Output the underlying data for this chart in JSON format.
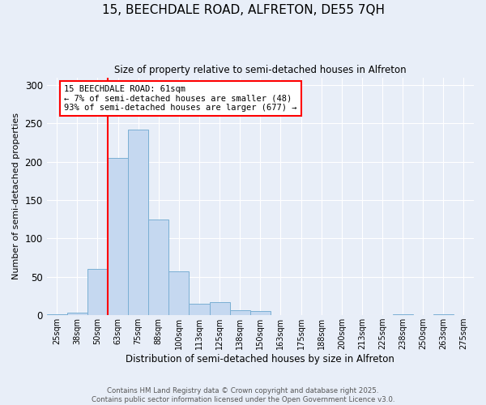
{
  "title": "15, BEECHDALE ROAD, ALFRETON, DE55 7QH",
  "subtitle": "Size of property relative to semi-detached houses in Alfreton",
  "xlabel": "Distribution of semi-detached houses by size in Alfreton",
  "ylabel": "Number of semi-detached properties",
  "bin_labels": [
    "25sqm",
    "38sqm",
    "50sqm",
    "63sqm",
    "75sqm",
    "88sqm",
    "100sqm",
    "113sqm",
    "125sqm",
    "138sqm",
    "150sqm",
    "163sqm",
    "175sqm",
    "188sqm",
    "200sqm",
    "213sqm",
    "225sqm",
    "238sqm",
    "250sqm",
    "263sqm",
    "275sqm"
  ],
  "bin_values": [
    1,
    3,
    60,
    205,
    242,
    125,
    57,
    15,
    17,
    7,
    5,
    0,
    0,
    0,
    0,
    0,
    0,
    1,
    0,
    1,
    0
  ],
  "bar_color": "#c5d8f0",
  "bar_edge_color": "#7aafd4",
  "red_line_x": 2.5,
  "annotation_text": "15 BEECHDALE ROAD: 61sqm\n← 7% of semi-detached houses are smaller (48)\n93% of semi-detached houses are larger (677) →",
  "annotation_box_color": "white",
  "annotation_box_edge": "red",
  "ylim": [
    0,
    310
  ],
  "yticks": [
    0,
    50,
    100,
    150,
    200,
    250,
    300
  ],
  "footer_text": "Contains HM Land Registry data © Crown copyright and database right 2025.\nContains public sector information licensed under the Open Government Licence v3.0.",
  "background_color": "#e8eef8"
}
